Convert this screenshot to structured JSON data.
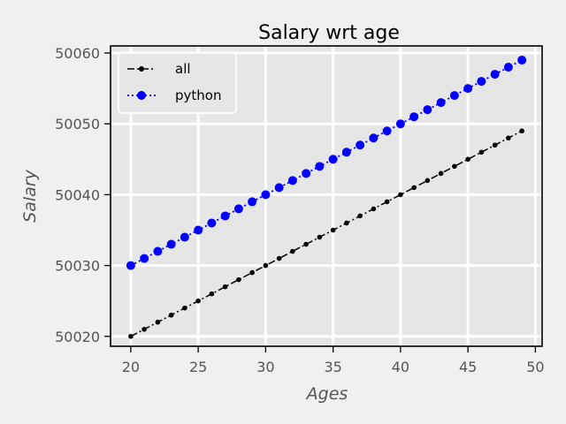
{
  "chart_data": {
    "type": "line",
    "title": "Salary wrt age",
    "xlabel": "Ages",
    "ylabel": "Salary",
    "xlim": [
      18.5,
      50.5
    ],
    "ylim": [
      50018.6,
      50061
    ],
    "xticks": [
      20,
      25,
      30,
      35,
      40,
      45,
      50
    ],
    "yticks": [
      50020,
      50030,
      50040,
      50050,
      50060
    ],
    "grid": true,
    "legend_position": "upper-left",
    "x": [
      20,
      21,
      22,
      23,
      24,
      25,
      26,
      27,
      28,
      29,
      30,
      31,
      32,
      33,
      34,
      35,
      36,
      37,
      38,
      39,
      40,
      41,
      42,
      43,
      44,
      45,
      46,
      47,
      48,
      49
    ],
    "series": [
      {
        "name": "all",
        "color": "#000000",
        "linestyle": "dash-dot",
        "marker": "small-dot",
        "values": [
          50020,
          50021,
          50022,
          50023,
          50024,
          50025,
          50026,
          50027,
          50028,
          50029,
          50030,
          50031,
          50032,
          50033,
          50034,
          50035,
          50036,
          50037,
          50038,
          50039,
          50040,
          50041,
          50042,
          50043,
          50044,
          50045,
          50046,
          50047,
          50048,
          50049
        ]
      },
      {
        "name": "python",
        "color": "#0000ff",
        "linestyle": "dotted",
        "marker": "large-dot",
        "values": [
          50030,
          50031,
          50032,
          50033,
          50034,
          50035,
          50036,
          50037,
          50038,
          50039,
          50040,
          50041,
          50042,
          50043,
          50044,
          50045,
          50046,
          50047,
          50048,
          50049,
          50050,
          50051,
          50052,
          50053,
          50054,
          50055,
          50056,
          50057,
          50058,
          50059
        ]
      }
    ]
  }
}
